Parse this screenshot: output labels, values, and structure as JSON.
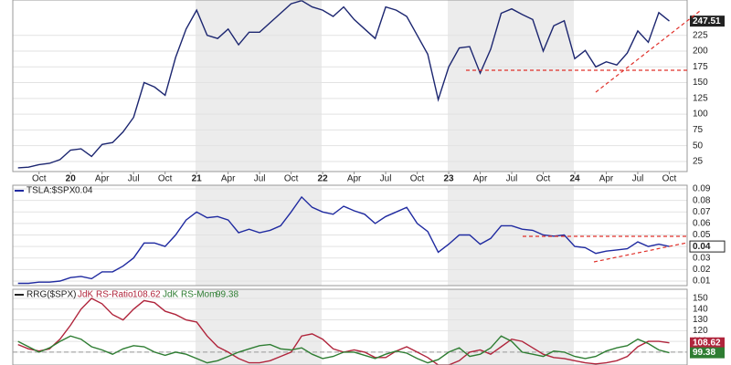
{
  "chart_data": [
    {
      "type": "line",
      "color": "#1c2670",
      "x": [
        0,
        1,
        2,
        3,
        4,
        5,
        6,
        7,
        8,
        9,
        10,
        11,
        12,
        13,
        14,
        15,
        16,
        17,
        18,
        19,
        20,
        21,
        22,
        23,
        24,
        25,
        26,
        27,
        28,
        29,
        30,
        31,
        32,
        33,
        34,
        35,
        36,
        37,
        38,
        39,
        40,
        41,
        42,
        43,
        44,
        45,
        46,
        47,
        48,
        49,
        50,
        51,
        52,
        53,
        54,
        55,
        56,
        57,
        58,
        59,
        60,
        61,
        62
      ],
      "values": [
        15,
        16,
        20,
        22,
        28,
        43,
        45,
        33,
        52,
        55,
        72,
        95,
        150,
        143,
        130,
        190,
        235,
        265,
        225,
        220,
        235,
        210,
        230,
        230,
        245,
        260,
        275,
        280,
        270,
        265,
        255,
        270,
        250,
        235,
        220,
        270,
        265,
        255,
        225,
        195,
        123,
        175,
        205,
        207,
        165,
        203,
        260,
        267,
        258,
        250,
        200,
        240,
        248,
        188,
        201,
        175,
        183,
        178,
        197,
        232,
        214,
        261,
        247.51
      ],
      "xlim": [
        -0.5,
        63.7
      ],
      "ylim": [
        9,
        281
      ],
      "xticks": [
        {
          "value": 2,
          "label": "Oct"
        },
        {
          "value": 5,
          "label": "20"
        },
        {
          "value": 8,
          "label": "Apr"
        },
        {
          "value": 11,
          "label": "Jul"
        },
        {
          "value": 14,
          "label": "Oct"
        },
        {
          "value": 17,
          "label": "21"
        },
        {
          "value": 20,
          "label": "Apr"
        },
        {
          "value": 23,
          "label": "Jul"
        },
        {
          "value": 26,
          "label": "Oct"
        },
        {
          "value": 29,
          "label": "22"
        },
        {
          "value": 32,
          "label": "Apr"
        },
        {
          "value": 35,
          "label": "Jul"
        },
        {
          "value": 38,
          "label": "Oct"
        },
        {
          "value": 41,
          "label": "23"
        },
        {
          "value": 44,
          "label": "Apr"
        },
        {
          "value": 47,
          "label": "Jul"
        },
        {
          "value": 50,
          "label": "Oct"
        },
        {
          "value": 53,
          "label": "24"
        },
        {
          "value": 56,
          "label": "Apr"
        },
        {
          "value": 59,
          "label": "Jul"
        },
        {
          "value": 62,
          "label": "Oct"
        }
      ],
      "yticks": [
        25,
        50,
        75,
        100,
        125,
        150,
        175,
        200,
        225
      ]
    },
    {
      "type": "line",
      "title": "TSLA:$SPX",
      "color": "#1f2aa0",
      "x": [
        0,
        1,
        2,
        3,
        4,
        5,
        6,
        7,
        8,
        9,
        10,
        11,
        12,
        13,
        14,
        15,
        16,
        17,
        18,
        19,
        20,
        21,
        22,
        23,
        24,
        25,
        26,
        27,
        28,
        29,
        30,
        31,
        32,
        33,
        34,
        35,
        36,
        37,
        38,
        39,
        40,
        41,
        42,
        43,
        44,
        45,
        46,
        47,
        48,
        49,
        50,
        51,
        52,
        53,
        54,
        55,
        56,
        57,
        58,
        59,
        60,
        61,
        62
      ],
      "values": [
        0.008,
        0.008,
        0.009,
        0.009,
        0.01,
        0.013,
        0.014,
        0.012,
        0.018,
        0.018,
        0.023,
        0.03,
        0.043,
        0.043,
        0.04,
        0.05,
        0.063,
        0.07,
        0.065,
        0.066,
        0.063,
        0.052,
        0.055,
        0.052,
        0.054,
        0.058,
        0.07,
        0.083,
        0.074,
        0.07,
        0.068,
        0.075,
        0.071,
        0.068,
        0.06,
        0.066,
        0.07,
        0.074,
        0.06,
        0.053,
        0.035,
        0.042,
        0.05,
        0.05,
        0.042,
        0.047,
        0.058,
        0.058,
        0.055,
        0.054,
        0.05,
        0.049,
        0.05,
        0.04,
        0.039,
        0.034,
        0.036,
        0.037,
        0.038,
        0.044,
        0.04,
        0.042,
        0.04
      ],
      "xlim": [
        -0.5,
        63.7
      ],
      "ylim": [
        0.006,
        0.0932
      ],
      "yticks": [
        0.01,
        0.02,
        0.03,
        0.04,
        0.05,
        0.06,
        0.07,
        0.08,
        0.09
      ]
    },
    {
      "type": "line",
      "title": "RRG($SPX)",
      "x": [
        0,
        1,
        2,
        3,
        4,
        5,
        6,
        7,
        8,
        9,
        10,
        11,
        12,
        13,
        14,
        15,
        16,
        17,
        18,
        19,
        20,
        21,
        22,
        23,
        24,
        25,
        26,
        27,
        28,
        29,
        30,
        31,
        32,
        33,
        34,
        35,
        36,
        37,
        38,
        39,
        40,
        41,
        42,
        43,
        44,
        45,
        46,
        47,
        48,
        49,
        50,
        51,
        52,
        53,
        54,
        55,
        56,
        57,
        58,
        59,
        60,
        61,
        62
      ],
      "series": [
        {
          "name": "JdK RS-Ratio",
          "color": "#b0253c",
          "values": [
            107,
            103,
            101,
            103,
            112,
            125,
            140,
            150,
            145,
            135,
            130,
            140,
            148,
            146,
            138,
            135,
            130,
            128,
            115,
            105,
            100,
            94,
            90,
            90,
            92,
            96,
            100,
            115,
            117,
            112,
            103,
            100,
            102,
            100,
            95,
            95,
            101,
            105,
            100,
            95,
            88,
            88,
            92,
            100,
            102,
            98,
            105,
            112,
            110,
            104,
            98,
            95,
            94,
            92,
            90,
            89,
            90,
            92,
            96,
            105,
            110,
            110,
            108.62
          ]
        },
        {
          "name": "JdK RS-Mom",
          "color": "#2e7d32",
          "values": [
            110,
            105,
            100,
            104,
            110,
            115,
            112,
            105,
            102,
            98,
            103,
            106,
            105,
            100,
            97,
            100,
            98,
            94,
            90,
            92,
            96,
            100,
            103,
            106,
            107,
            103,
            102,
            104,
            98,
            94,
            96,
            100,
            100,
            97,
            94,
            98,
            101,
            99,
            94,
            90,
            93,
            100,
            104,
            96,
            98,
            104,
            115,
            110,
            100,
            98,
            96,
            101,
            100,
            96,
            94,
            96,
            101,
            104,
            106,
            112,
            108,
            102,
            99.38
          ]
        }
      ],
      "xlim": [
        -0.5,
        63.7
      ],
      "ylim": [
        88,
        158.5
      ],
      "yticks": [
        100,
        110,
        120,
        130,
        140,
        150
      ]
    }
  ]
}
